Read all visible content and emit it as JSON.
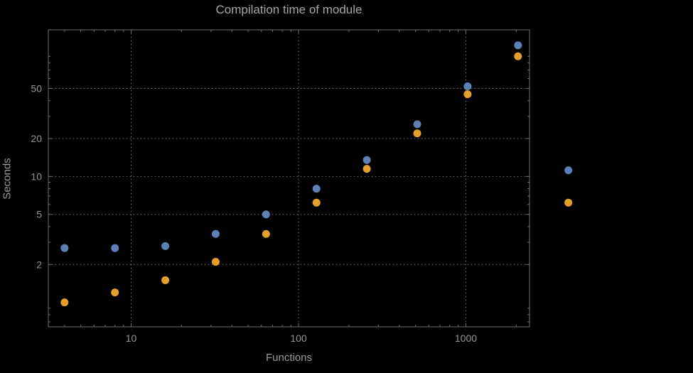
{
  "chart_data": {
    "type": "scatter",
    "title": "Compilation time of module",
    "xlabel": "Functions",
    "ylabel": "Seconds",
    "xscale": "log",
    "yscale": "log",
    "xlim": [
      3.2,
      2400
    ],
    "ylim": [
      0.64,
      146
    ],
    "grid": true,
    "legend": "none",
    "x": [
      4,
      8,
      16,
      32,
      64,
      128,
      256,
      512,
      1024,
      2048,
      4096
    ],
    "series": [
      {
        "name": "series-1-blue",
        "color": "#5e81b5",
        "values": [
          2.7,
          2.7,
          2.8,
          3.5,
          5.0,
          8.0,
          13.5,
          26,
          52,
          110,
          11.2
        ]
      },
      {
        "name": "series-2-orange",
        "color": "#e5a02c",
        "values": [
          1.0,
          1.2,
          1.5,
          2.1,
          3.5,
          6.2,
          11.5,
          22,
          45,
          90,
          6.2
        ]
      }
    ],
    "xticks": [
      {
        "v": 10,
        "label": "10"
      },
      {
        "v": 100,
        "label": "100"
      },
      {
        "v": 1000,
        "label": "1000"
      }
    ],
    "yticks": [
      {
        "v": 2,
        "label": "2"
      },
      {
        "v": 5,
        "label": "5"
      },
      {
        "v": 10,
        "label": "10"
      },
      {
        "v": 20,
        "label": "20"
      },
      {
        "v": 50,
        "label": "50"
      }
    ],
    "colors": {
      "background": "#000000",
      "frame": "#6e6e6e",
      "gridline": "#6f6f6f",
      "text": "#9a9a9a"
    }
  }
}
